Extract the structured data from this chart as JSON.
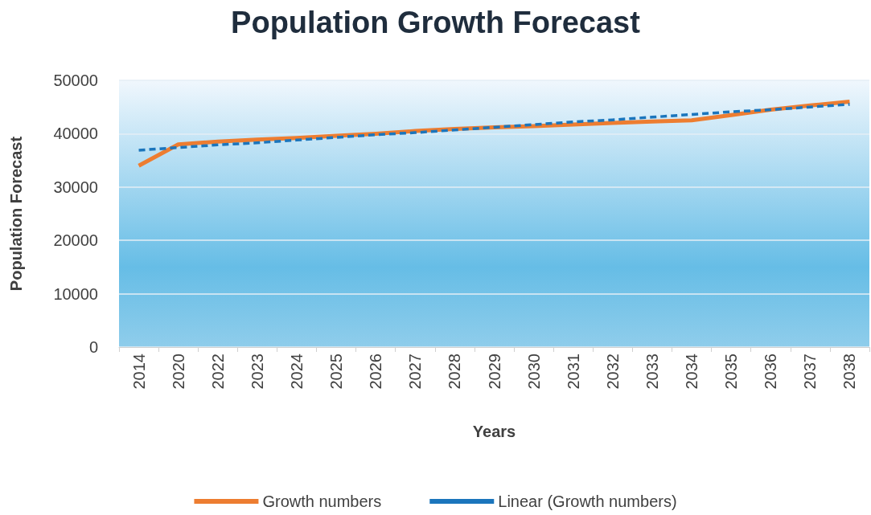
{
  "chart_data": {
    "type": "line",
    "title": "Population Growth Forecast",
    "xlabel": "Years",
    "ylabel": "Population Forecast",
    "categories": [
      "2014",
      "2020",
      "2022",
      "2023",
      "2024",
      "2025",
      "2026",
      "2027",
      "2028",
      "2029",
      "2030",
      "2031",
      "2032",
      "2033",
      "2034",
      "2035",
      "2036",
      "2037",
      "2038"
    ],
    "series": [
      {
        "name": "Growth numbers",
        "color": "#ed7d31",
        "line_style": "solid",
        "values": [
          34000,
          38000,
          38500,
          38900,
          39200,
          39600,
          40000,
          40500,
          40900,
          41200,
          41400,
          41700,
          42000,
          42300,
          42500,
          43500,
          44500,
          45300,
          46000
        ]
      },
      {
        "name": "Linear (Growth numbers)",
        "color": "#1b75bc",
        "line_style": "dashed",
        "values": [
          36900,
          37400,
          37900,
          38300,
          38800,
          39300,
          39800,
          40200,
          40700,
          41200,
          41700,
          42200,
          42600,
          43100,
          43600,
          44100,
          44500,
          45000,
          45500
        ]
      }
    ],
    "ylim": [
      0,
      50000
    ],
    "yticks": [
      0,
      10000,
      20000,
      30000,
      40000,
      50000
    ],
    "grid": "y",
    "legend": "bottom",
    "marker": "none"
  }
}
